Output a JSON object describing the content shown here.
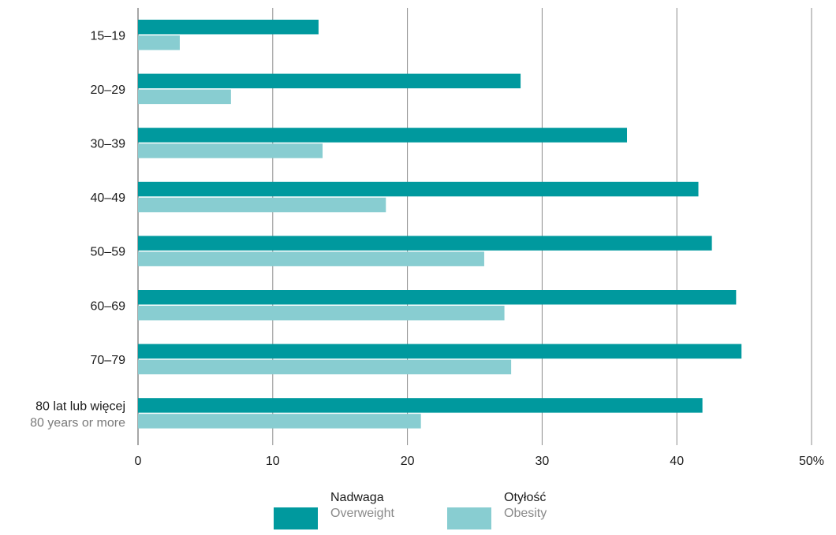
{
  "chart_data": {
    "type": "bar",
    "orientation": "horizontal",
    "categories": [
      "15–19",
      "20–29",
      "30–39",
      "40–49",
      "50–59",
      "60–69",
      "70–79",
      "80 lat lub więcej"
    ],
    "category_sublabels": [
      "",
      "",
      "",
      "",
      "",
      "",
      "",
      "80 years or more"
    ],
    "series": [
      {
        "name": "Nadwaga",
        "name_en": "Overweight",
        "color": "#00999e",
        "values": [
          13.4,
          28.4,
          36.3,
          41.6,
          42.6,
          44.4,
          44.8,
          41.9
        ]
      },
      {
        "name": "Otyłość",
        "name_en": "Obesity",
        "color": "#88cdd1",
        "values": [
          3.1,
          6.9,
          13.7,
          18.4,
          25.7,
          27.2,
          27.7,
          21.0
        ]
      }
    ],
    "xlim": [
      0,
      50
    ],
    "xticks": [
      "0",
      "10",
      "20",
      "30",
      "40",
      "50%"
    ],
    "xtick_values": [
      0,
      10,
      20,
      30,
      40,
      50
    ],
    "grid": true,
    "legend_position": "bottom"
  }
}
